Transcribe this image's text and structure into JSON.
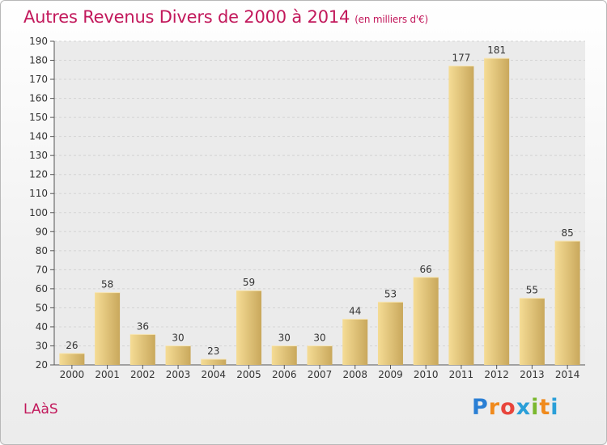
{
  "page": {
    "title": "Autres Revenus Divers de 2000 à 2014",
    "subtitle": "(en milliers d'€)",
    "place": "LAàS",
    "brand": {
      "letters": [
        "P",
        "r",
        "o",
        "x",
        "i",
        "t",
        "i"
      ],
      "colors": [
        "#2a7fd4",
        "#f08a1c",
        "#e8453c",
        "#2a9fd8",
        "#7ab82e",
        "#f08a1c",
        "#2a9fd8"
      ]
    }
  },
  "colors": {
    "title": "#c2185b",
    "bar_light": "#f5dc95",
    "bar_dark": "#c9a85c"
  },
  "chart_data": {
    "type": "bar",
    "title": "Autres Revenus Divers de 2000 à 2014",
    "subtitle": "(en milliers d'€)",
    "xlabel": "",
    "ylabel": "",
    "categories": [
      "2000",
      "2001",
      "2002",
      "2003",
      "2004",
      "2005",
      "2006",
      "2007",
      "2008",
      "2009",
      "2010",
      "2011",
      "2012",
      "2013",
      "2014"
    ],
    "values": [
      26,
      58,
      36,
      30,
      23,
      59,
      30,
      30,
      44,
      53,
      66,
      177,
      181,
      55,
      85
    ],
    "ylim": [
      20,
      190
    ],
    "yticks": [
      20,
      30,
      40,
      50,
      60,
      70,
      80,
      90,
      100,
      110,
      120,
      130,
      140,
      150,
      160,
      170,
      180,
      190
    ],
    "grid": true,
    "legend": "none"
  }
}
